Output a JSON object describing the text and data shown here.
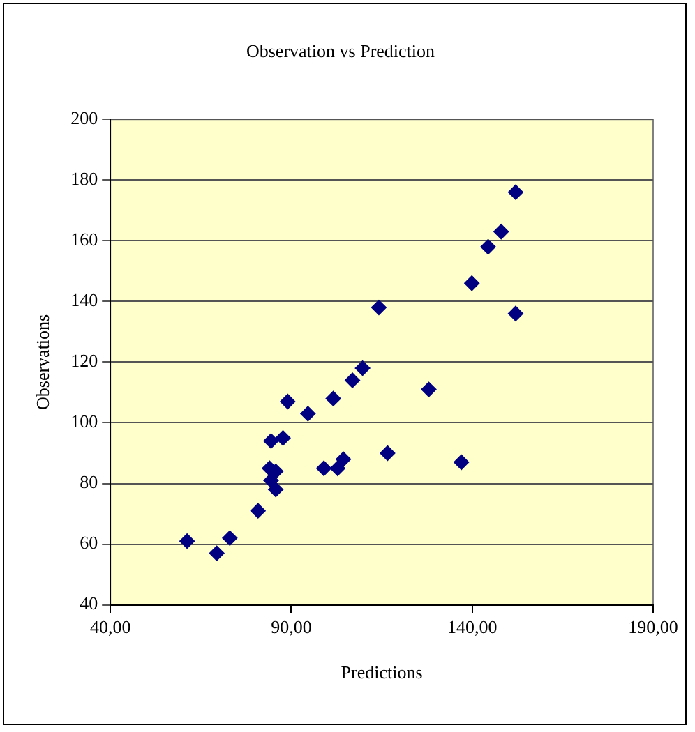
{
  "chart_data": {
    "type": "scatter",
    "title": "Observation vs Prediction",
    "xlabel": "Predictions",
    "ylabel": "Observations",
    "x": [
      61.2,
      69.4,
      73,
      80.8,
      84,
      84.4,
      84.4,
      85.7,
      85.7,
      87.7,
      89,
      94.6,
      99,
      101.6,
      102.8,
      104.4,
      106.9,
      109.7,
      114.2,
      116.6,
      128,
      137,
      139.9,
      144.4,
      148,
      152,
      152
    ],
    "series": [
      {
        "color": "#000080",
        "values": [
          61,
          57,
          62,
          71,
          85,
          94,
          81,
          84,
          78,
          95,
          107,
          103,
          85,
          108,
          85,
          88,
          114,
          118,
          138,
          90,
          111,
          87,
          146,
          158,
          163,
          136,
          176
        ]
      }
    ],
    "xlim": [
      40,
      190
    ],
    "xticks": [
      {
        "value": 40,
        "label": "40,00"
      },
      {
        "value": 90,
        "label": "90,00"
      },
      {
        "value": 140,
        "label": "140,00"
      },
      {
        "value": 190,
        "label": "190,00"
      }
    ],
    "ylim": [
      40,
      200
    ],
    "yticks": [
      40,
      60,
      80,
      100,
      120,
      140,
      160,
      180,
      200
    ],
    "grid": "y",
    "marker": "diamond",
    "legend": false
  }
}
